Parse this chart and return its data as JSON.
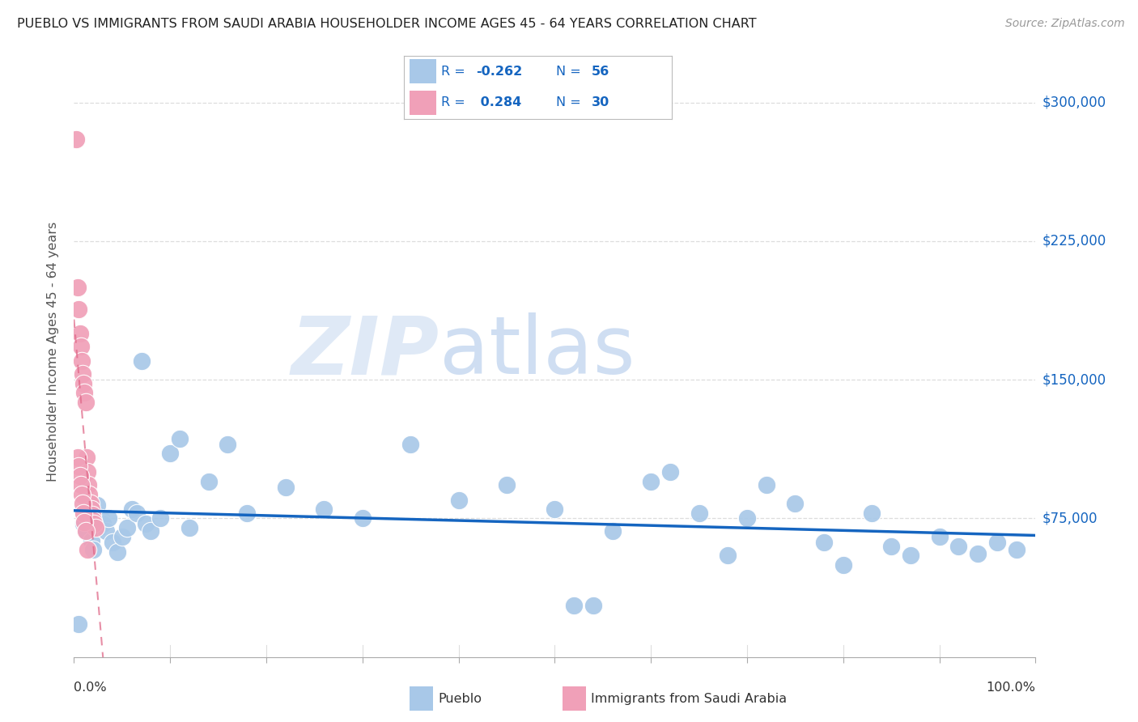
{
  "title": "PUEBLO VS IMMIGRANTS FROM SAUDI ARABIA HOUSEHOLDER INCOME AGES 45 - 64 YEARS CORRELATION CHART",
  "source": "Source: ZipAtlas.com",
  "ylabel": "Householder Income Ages 45 - 64 years",
  "ytick_labels": [
    "$75,000",
    "$150,000",
    "$225,000",
    "$300,000"
  ],
  "ytick_values": [
    75000,
    150000,
    225000,
    300000
  ],
  "ymin": 0,
  "ymax": 330000,
  "xmin": 0.0,
  "xmax": 1.0,
  "pueblo_color": "#a8c8e8",
  "saudi_color": "#f0a0b8",
  "trend_blue": "#1565c0",
  "trend_pink": "#e06888",
  "watermark_zip": "ZIP",
  "watermark_atlas": "atlas",
  "watermark_color_zip": "#c5d8f0",
  "watermark_color_atlas": "#a8c4e8",
  "pueblo_label": "Pueblo",
  "saudi_label": "Immigrants from Saudi Arabia",
  "legend_border": "#bbbbbb",
  "axis_label_color": "#1565c0",
  "pueblo_x": [
    0.005,
    0.01,
    0.013,
    0.016,
    0.018,
    0.02,
    0.022,
    0.024,
    0.026,
    0.028,
    0.03,
    0.033,
    0.036,
    0.04,
    0.045,
    0.05,
    0.055,
    0.06,
    0.065,
    0.07,
    0.075,
    0.08,
    0.09,
    0.1,
    0.11,
    0.12,
    0.14,
    0.16,
    0.18,
    0.22,
    0.26,
    0.3,
    0.35,
    0.4,
    0.45,
    0.5,
    0.52,
    0.54,
    0.56,
    0.6,
    0.62,
    0.65,
    0.68,
    0.7,
    0.72,
    0.75,
    0.78,
    0.8,
    0.83,
    0.85,
    0.87,
    0.9,
    0.92,
    0.94,
    0.96,
    0.98
  ],
  "pueblo_y": [
    18000,
    72000,
    68000,
    75000,
    63000,
    58000,
    78000,
    82000,
    70000,
    75000,
    72000,
    68000,
    75000,
    62000,
    57000,
    65000,
    70000,
    80000,
    78000,
    160000,
    72000,
    68000,
    75000,
    110000,
    118000,
    70000,
    95000,
    115000,
    78000,
    92000,
    80000,
    75000,
    115000,
    85000,
    93000,
    80000,
    28000,
    28000,
    68000,
    95000,
    100000,
    78000,
    55000,
    75000,
    93000,
    83000,
    62000,
    50000,
    78000,
    60000,
    55000,
    65000,
    60000,
    56000,
    62000,
    58000
  ],
  "saudi_x": [
    0.002,
    0.004,
    0.005,
    0.006,
    0.007,
    0.008,
    0.009,
    0.01,
    0.011,
    0.012,
    0.013,
    0.014,
    0.015,
    0.016,
    0.017,
    0.018,
    0.019,
    0.02,
    0.021,
    0.022,
    0.004,
    0.005,
    0.006,
    0.007,
    0.008,
    0.009,
    0.01,
    0.011,
    0.012,
    0.014
  ],
  "saudi_y": [
    280000,
    200000,
    188000,
    175000,
    168000,
    160000,
    153000,
    148000,
    143000,
    138000,
    108000,
    100000,
    93000,
    88000,
    83000,
    80000,
    77000,
    74000,
    72000,
    70000,
    108000,
    103000,
    98000,
    93000,
    88000,
    83000,
    78000,
    73000,
    68000,
    58000
  ],
  "pink_trend_x0": 0.0,
  "pink_trend_x1": 0.17,
  "blue_trend_x0": 0.0,
  "blue_trend_x1": 1.0
}
